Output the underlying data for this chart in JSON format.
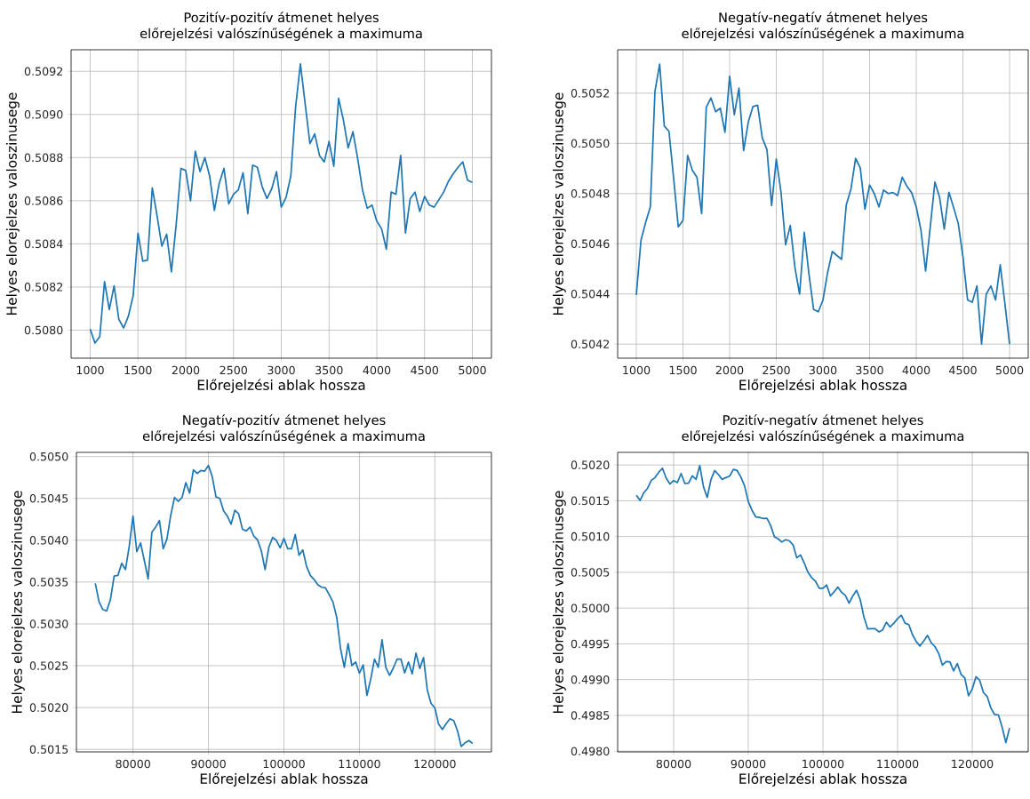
{
  "chart_data": [
    {
      "type": "line",
      "title": "Pozitív-pozitív átmenet helyes",
      "subtitle": "előrejelzési valószínűségének a maximuma",
      "xlabel": "Előrejelzési ablak hossza",
      "ylabel": "Helyes elorejelzes valoszinusege",
      "grid": true,
      "xlim": [
        800,
        5200
      ],
      "ylim": [
        0.50787,
        0.5093
      ],
      "xticks": [
        1000,
        1500,
        2000,
        2500,
        3000,
        3500,
        4000,
        4500,
        5000
      ],
      "yticks": [
        {
          "value": 0.508,
          "label": "0.5080"
        },
        0.5082,
        0.5084,
        0.5086,
        0.5088,
        {
          "value": 0.509,
          "label": "0.5090"
        },
        0.5092
      ],
      "x": [
        1000,
        1050,
        1100,
        1150,
        1200,
        1250,
        1300,
        1350,
        1400,
        1450,
        1500,
        1550,
        1600,
        1650,
        1700,
        1750,
        1800,
        1850,
        1900,
        1950,
        2000,
        2050,
        2100,
        2150,
        2200,
        2250,
        2300,
        2350,
        2400,
        2450,
        2500,
        2550,
        2600,
        2650,
        2700,
        2750,
        2800,
        2850,
        2900,
        2950,
        3000,
        3050,
        3100,
        3150,
        3200,
        3250,
        3300,
        3350,
        3400,
        3450,
        3500,
        3550,
        3600,
        3650,
        3700,
        3750,
        3800,
        3850,
        3900,
        3950,
        4000,
        4050,
        4100,
        4150,
        4200,
        4250,
        4300,
        4350,
        4400,
        4450,
        4500,
        4550,
        4600,
        4650,
        4700,
        4750,
        4800,
        4850,
        4900,
        4950,
        5000
      ],
      "series": [
        {
          "color": "#1f77b4",
          "values": [
            0.508005,
            0.50794,
            0.50797,
            0.508225,
            0.508095,
            0.508205,
            0.50805,
            0.50801,
            0.508065,
            0.50816,
            0.50845,
            0.50832,
            0.508325,
            0.50866,
            0.50853,
            0.50839,
            0.508445,
            0.50827,
            0.50849,
            0.50875,
            0.50874,
            0.5086,
            0.50883,
            0.508735,
            0.5088,
            0.508715,
            0.508555,
            0.50868,
            0.50875,
            0.508585,
            0.50863,
            0.50865,
            0.50873,
            0.50854,
            0.508765,
            0.508755,
            0.508665,
            0.50861,
            0.508655,
            0.508735,
            0.50857,
            0.508615,
            0.508715,
            0.509035,
            0.509235,
            0.50905,
            0.508865,
            0.50891,
            0.50881,
            0.50878,
            0.508875,
            0.50876,
            0.509075,
            0.508975,
            0.508845,
            0.50892,
            0.508795,
            0.50865,
            0.508565,
            0.50858,
            0.508505,
            0.50847,
            0.508375,
            0.50864,
            0.50863,
            0.50881,
            0.50845,
            0.50861,
            0.50864,
            0.50855,
            0.50862,
            0.50858,
            0.50857,
            0.508605,
            0.50864,
            0.50869,
            0.508725,
            0.508755,
            0.50878,
            0.508695,
            0.508685
          ]
        }
      ]
    },
    {
      "type": "line",
      "title": "Negatív-negatív átmenet helyes",
      "subtitle": "előrejelzési valószínűségének a maximuma",
      "xlabel": "Előrejelzési ablak hossza",
      "ylabel": "Helyes elorejelzes valoszinusege",
      "grid": true,
      "xlim": [
        800,
        5200
      ],
      "ylim": [
        0.504144,
        0.505373
      ],
      "xticks": [
        1000,
        1500,
        2000,
        2500,
        3000,
        3500,
        4000,
        4500,
        5000
      ],
      "yticks": [
        0.5042,
        0.5044,
        0.5046,
        0.5048,
        {
          "value": 0.505,
          "label": "0.5050"
        },
        0.5052
      ],
      "x": [
        1000,
        1050,
        1100,
        1150,
        1200,
        1250,
        1300,
        1350,
        1400,
        1450,
        1500,
        1550,
        1600,
        1650,
        1700,
        1750,
        1800,
        1850,
        1900,
        1950,
        2000,
        2050,
        2100,
        2150,
        2200,
        2250,
        2300,
        2350,
        2400,
        2450,
        2500,
        2550,
        2600,
        2650,
        2700,
        2750,
        2800,
        2850,
        2900,
        2950,
        3000,
        3050,
        3100,
        3150,
        3200,
        3250,
        3300,
        3350,
        3400,
        3450,
        3500,
        3550,
        3600,
        3650,
        3700,
        3750,
        3800,
        3850,
        3900,
        3950,
        4000,
        4050,
        4100,
        4150,
        4200,
        4250,
        4300,
        4350,
        4400,
        4450,
        4500,
        4550,
        4600,
        4650,
        4700,
        4750,
        4800,
        4850,
        4900,
        4950,
        5000
      ],
      "series": [
        {
          "color": "#1f77b4",
          "values": [
            0.504396,
            0.504614,
            0.504685,
            0.504747,
            0.505208,
            0.505316,
            0.505069,
            0.505048,
            0.504861,
            0.504667,
            0.504693,
            0.504952,
            0.504893,
            0.504865,
            0.50472,
            0.505144,
            0.505181,
            0.505126,
            0.50514,
            0.505044,
            0.505267,
            0.505114,
            0.50522,
            0.504971,
            0.505085,
            0.505147,
            0.505152,
            0.505022,
            0.504975,
            0.504752,
            0.504938,
            0.504808,
            0.504596,
            0.504673,
            0.504505,
            0.504399,
            0.504646,
            0.504479,
            0.504338,
            0.504329,
            0.504375,
            0.504485,
            0.504569,
            0.504553,
            0.504538,
            0.504755,
            0.504818,
            0.50494,
            0.504902,
            0.504738,
            0.504834,
            0.5048,
            0.504747,
            0.504814,
            0.5048,
            0.504804,
            0.504792,
            0.504865,
            0.504829,
            0.504804,
            0.504747,
            0.504655,
            0.504491,
            0.504667,
            0.504846,
            0.504785,
            0.504658,
            0.504805,
            0.504744,
            0.504681,
            0.504549,
            0.504376,
            0.504367,
            0.504432,
            0.5042,
            0.504399,
            0.504432,
            0.504376,
            0.504516,
            0.504361,
            0.5042
          ]
        }
      ]
    },
    {
      "type": "line",
      "title": "Negatív-pozitív átmenet helyes",
      "subtitle": "előrejelzési valószínűségének a maximuma",
      "xlabel": "Előrejelzési ablak hossza",
      "ylabel": "Helyes elorejelzes valoszinusege",
      "grid": true,
      "xlim": [
        72500,
        127500
      ],
      "ylim": [
        0.50147,
        0.50505
      ],
      "xticks": [
        80000,
        90000,
        100000,
        110000,
        120000
      ],
      "yticks": [
        0.5015,
        {
          "value": 0.502,
          "label": "0.5020"
        },
        0.5025,
        {
          "value": 0.503,
          "label": "0.5030"
        },
        0.5035,
        {
          "value": 0.504,
          "label": "0.5040"
        },
        0.5045,
        {
          "value": 0.505,
          "label": "0.5050"
        }
      ],
      "x": [
        75000,
        75500,
        76000,
        76500,
        77000,
        77500,
        78000,
        78500,
        79000,
        79500,
        80000,
        80500,
        81000,
        81500,
        82000,
        82500,
        83000,
        83500,
        84000,
        84500,
        85000,
        85500,
        86000,
        86500,
        87000,
        87500,
        88000,
        88500,
        89000,
        89500,
        90000,
        90500,
        91000,
        91500,
        92000,
        92500,
        93000,
        93500,
        94000,
        94500,
        95000,
        95500,
        96000,
        96500,
        97000,
        97500,
        98000,
        98500,
        99000,
        99500,
        100000,
        100500,
        101000,
        101500,
        102000,
        102500,
        103000,
        103500,
        104000,
        104500,
        105000,
        105500,
        106000,
        106500,
        107000,
        107500,
        108000,
        108500,
        109000,
        109500,
        110000,
        110500,
        111000,
        111500,
        112000,
        112500,
        113000,
        113500,
        114000,
        114500,
        115000,
        115500,
        116000,
        116500,
        117000,
        117500,
        118000,
        118500,
        119000,
        119500,
        120000,
        120500,
        121000,
        121500,
        122000,
        122500,
        123000,
        123500,
        124000,
        124500,
        125000
      ],
      "series": [
        {
          "color": "#1f77b4",
          "values": [
            0.503484,
            0.503264,
            0.503172,
            0.503154,
            0.503289,
            0.503572,
            0.50358,
            0.503725,
            0.50365,
            0.503927,
            0.504288,
            0.503863,
            0.503969,
            0.503757,
            0.503537,
            0.504097,
            0.504157,
            0.504235,
            0.503898,
            0.504015,
            0.504299,
            0.504511,
            0.504465,
            0.504511,
            0.504688,
            0.504564,
            0.504841,
            0.504798,
            0.504834,
            0.504826,
            0.504894,
            0.504759,
            0.504518,
            0.5045,
            0.504352,
            0.504288,
            0.504192,
            0.504359,
            0.504316,
            0.504132,
            0.504111,
            0.504157,
            0.504051,
            0.504005,
            0.503874,
            0.50365,
            0.503916,
            0.504033,
            0.503998,
            0.503909,
            0.504022,
            0.503898,
            0.503898,
            0.504068,
            0.50382,
            0.503884,
            0.503686,
            0.50358,
            0.50353,
            0.503466,
            0.503438,
            0.503431,
            0.503349,
            0.503261,
            0.503077,
            0.502705,
            0.502481,
            0.502765,
            0.502503,
            0.502545,
            0.502411,
            0.50251,
            0.502145,
            0.50234,
            0.50258,
            0.502481,
            0.502811,
            0.502481,
            0.502386,
            0.502474,
            0.50258,
            0.50258,
            0.502414,
            0.502545,
            0.502403,
            0.502651,
            0.502467,
            0.502598,
            0.502209,
            0.502049,
            0.501996,
            0.501801,
            0.501738,
            0.501808,
            0.501865,
            0.501844,
            0.501723,
            0.501535,
            0.501578,
            0.501606,
            0.501571
          ]
        }
      ]
    },
    {
      "type": "line",
      "title": "Pozitív-negatív átmenet helyes",
      "subtitle": "előrejelzési valószínűségének a maximuma",
      "xlabel": "Előrejelzési ablak hossza",
      "ylabel": "Helyes elorejelzes valoszinusege",
      "grid": true,
      "xlim": [
        72500,
        127500
      ],
      "ylim": [
        0.49799,
        0.502176
      ],
      "xticks": [
        80000,
        90000,
        100000,
        110000,
        120000
      ],
      "yticks": [
        {
          "value": 0.498,
          "label": "0.4980"
        },
        0.4985,
        {
          "value": 0.499,
          "label": "0.4990"
        },
        0.4995,
        {
          "value": 0.5,
          "label": "0.5000"
        },
        0.5005,
        {
          "value": 0.501,
          "label": "0.5010"
        },
        0.5015,
        {
          "value": 0.502,
          "label": "0.5020"
        }
      ],
      "x": [
        75000,
        75500,
        76000,
        76500,
        77000,
        77500,
        78000,
        78500,
        79000,
        79500,
        80000,
        80500,
        81000,
        81500,
        82000,
        82500,
        83000,
        83500,
        84000,
        84500,
        85000,
        85500,
        86000,
        86500,
        87000,
        87500,
        88000,
        88500,
        89000,
        89500,
        90000,
        90500,
        91000,
        91500,
        92000,
        92500,
        93000,
        93500,
        94000,
        94500,
        95000,
        95500,
        96000,
        96500,
        97000,
        97500,
        98000,
        98500,
        99000,
        99500,
        100000,
        100500,
        101000,
        101500,
        102000,
        102500,
        103000,
        103500,
        104000,
        104500,
        105000,
        105500,
        106000,
        106500,
        107000,
        107500,
        108000,
        108500,
        109000,
        109500,
        110000,
        110500,
        111000,
        111500,
        112000,
        112500,
        113000,
        113500,
        114000,
        114500,
        115000,
        115500,
        116000,
        116500,
        117000,
        117500,
        118000,
        118500,
        119000,
        119500,
        120000,
        120500,
        121000,
        121500,
        122000,
        122500,
        123000,
        123500,
        124000,
        124500,
        125000
      ],
      "series": [
        {
          "color": "#1f77b4",
          "values": [
            0.501578,
            0.501505,
            0.501611,
            0.501673,
            0.501783,
            0.501824,
            0.501898,
            0.501955,
            0.501816,
            0.501734,
            0.501783,
            0.501754,
            0.501881,
            0.501742,
            0.501746,
            0.501849,
            0.501799,
            0.501992,
            0.501693,
            0.501546,
            0.501795,
            0.501922,
            0.501865,
            0.501799,
            0.501824,
            0.501844,
            0.501939,
            0.501922,
            0.501832,
            0.501709,
            0.501488,
            0.501366,
            0.501275,
            0.501267,
            0.501251,
            0.501255,
            0.501153,
            0.500997,
            0.500968,
            0.500923,
            0.500956,
            0.50094,
            0.500883,
            0.500702,
            0.500743,
            0.500629,
            0.500498,
            0.500424,
            0.500375,
            0.500277,
            0.500277,
            0.500322,
            0.50017,
            0.500228,
            0.500293,
            0.500219,
            0.500178,
            0.500068,
            0.50017,
            0.500248,
            0.500117,
            0.499871,
            0.499708,
            0.499712,
            0.499712,
            0.499667,
            0.499695,
            0.499802,
            0.499736,
            0.49979,
            0.499851,
            0.4999,
            0.49979,
            0.499769,
            0.499626,
            0.499532,
            0.49947,
            0.49954,
            0.499618,
            0.499515,
            0.499462,
            0.499368,
            0.499204,
            0.499253,
            0.499249,
            0.499122,
            0.499224,
            0.499073,
            0.499024,
            0.498774,
            0.498869,
            0.49904,
            0.498991,
            0.498819,
            0.498766,
            0.498603,
            0.498512,
            0.498508,
            0.498337,
            0.49812,
            0.498324
          ]
        }
      ]
    }
  ]
}
